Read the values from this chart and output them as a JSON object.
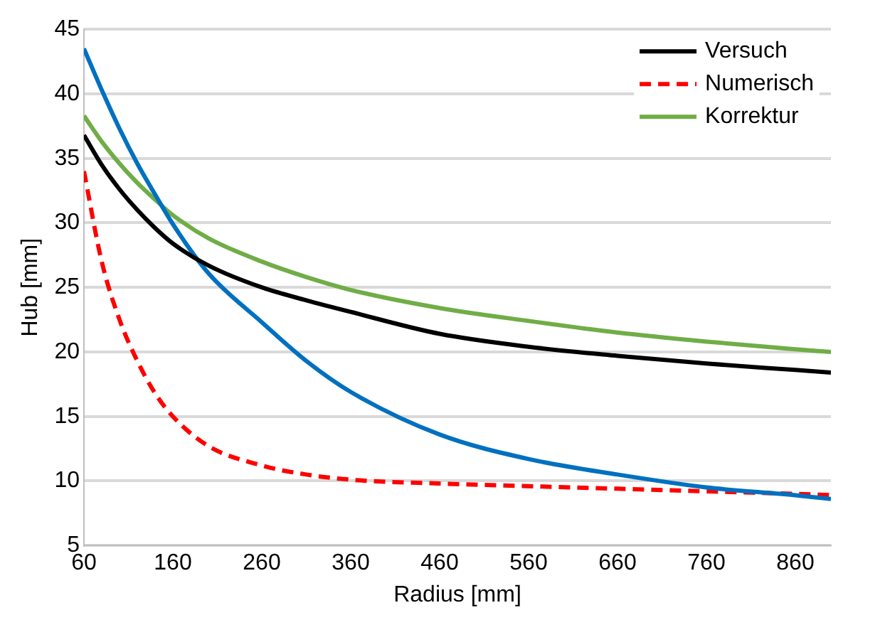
{
  "chart_data": {
    "type": "line",
    "xlabel": "Radius [mm]",
    "ylabel": "Hub [mm]",
    "x": [
      60,
      80,
      100,
      120,
      140,
      160,
      200,
      260,
      310,
      360,
      460,
      560,
      660,
      760,
      860,
      900
    ],
    "xlim": [
      60,
      900
    ],
    "xticks": [
      60,
      160,
      260,
      360,
      460,
      560,
      660,
      760,
      860
    ],
    "ylim": [
      5,
      45
    ],
    "yticks": [
      5,
      10,
      15,
      20,
      25,
      30,
      35,
      40,
      45
    ],
    "grid": "y",
    "legend": "top right",
    "marker": "none",
    "series": [
      {
        "name": "Versuch",
        "color": "#000000",
        "line_style": "solid",
        "values": [
          36.8,
          34.5,
          32.6,
          31.0,
          29.6,
          28.4,
          26.7,
          25.0,
          24.0,
          23.1,
          21.4,
          20.4,
          19.7,
          19.1,
          18.6,
          18.4
        ]
      },
      {
        "color": "#0070c0",
        "line_style": "solid",
        "values": [
          43.5,
          40.3,
          37.3,
          34.6,
          32.2,
          29.9,
          26.1,
          22.3,
          19.3,
          16.9,
          13.6,
          11.7,
          10.5,
          9.5,
          8.9,
          8.6
        ]
      },
      {
        "name": "Numerisch",
        "color": "#ff0000",
        "line_style": "dashed",
        "values": [
          34,
          27,
          22.5,
          19.3,
          16.8,
          15.0,
          12.7,
          11.2,
          10.5,
          10.1,
          9.8,
          9.6,
          9.4,
          9.2,
          9.0,
          8.9
        ]
      },
      {
        "name": "Korrektur",
        "color": "#70ad47",
        "line_style": "solid",
        "values": [
          38.3,
          36.3,
          34.6,
          33.1,
          31.8,
          30.6,
          28.8,
          27.0,
          25.8,
          24.8,
          23.4,
          22.4,
          21.5,
          20.8,
          20.2,
          20.0
        ]
      }
    ]
  }
}
